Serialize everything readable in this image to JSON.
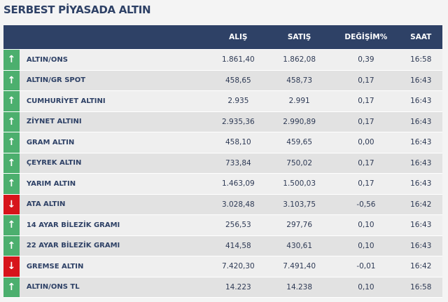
{
  "title": "SERBEST PİYASADA ALTIN",
  "colors": {
    "header": "#2e4166",
    "up": "#4caf6e",
    "down": "#d7141b"
  },
  "columns": {
    "buy": "ALIŞ",
    "sell": "SATIŞ",
    "change": "DEĞİŞİM%",
    "time": "SAAT"
  },
  "rows": [
    {
      "direction": "up",
      "icon": "arrow-up-icon",
      "name": "ALTIN/ONS",
      "buy": "1.861,40",
      "sell": "1.862,08",
      "change": "0,39",
      "time": "16:58"
    },
    {
      "direction": "up",
      "icon": "arrow-up-icon",
      "name": "ALTIN/GR SPOT",
      "buy": "458,65",
      "sell": "458,73",
      "change": "0,17",
      "time": "16:43"
    },
    {
      "direction": "up",
      "icon": "arrow-up-icon",
      "name": "CUMHURİYET ALTINI",
      "buy": "2.935",
      "sell": "2.991",
      "change": "0,17",
      "time": "16:43"
    },
    {
      "direction": "up",
      "icon": "arrow-up-icon",
      "name": "ZİYNET ALTINI",
      "buy": "2.935,36",
      "sell": "2.990,89",
      "change": "0,17",
      "time": "16:43"
    },
    {
      "direction": "up",
      "icon": "arrow-up-icon",
      "name": "GRAM ALTIN",
      "buy": "458,10",
      "sell": "459,65",
      "change": "0,00",
      "time": "16:43"
    },
    {
      "direction": "up",
      "icon": "arrow-up-icon",
      "name": "ÇEYREK ALTIN",
      "buy": "733,84",
      "sell": "750,02",
      "change": "0,17",
      "time": "16:43"
    },
    {
      "direction": "up",
      "icon": "arrow-up-icon",
      "name": "YARIM ALTIN",
      "buy": "1.463,09",
      "sell": "1.500,03",
      "change": "0,17",
      "time": "16:43"
    },
    {
      "direction": "down",
      "icon": "arrow-down-icon",
      "name": "ATA ALTIN",
      "buy": "3.028,48",
      "sell": "3.103,75",
      "change": "-0,56",
      "time": "16:42"
    },
    {
      "direction": "up",
      "icon": "arrow-up-icon",
      "name": "14 AYAR BİLEZİK GRAMI",
      "buy": "256,53",
      "sell": "297,76",
      "change": "0,10",
      "time": "16:43"
    },
    {
      "direction": "up",
      "icon": "arrow-up-icon",
      "name": "22 AYAR BİLEZİK GRAMI",
      "buy": "414,58",
      "sell": "430,61",
      "change": "0,10",
      "time": "16:43"
    },
    {
      "direction": "down",
      "icon": "arrow-down-icon",
      "name": "GREMSE ALTIN",
      "buy": "7.420,30",
      "sell": "7.491,40",
      "change": "-0,01",
      "time": "16:42"
    },
    {
      "direction": "up",
      "icon": "arrow-up-icon",
      "name": "ALTIN/ONS TL",
      "buy": "14.223",
      "sell": "14.238",
      "change": "0,10",
      "time": "16:58"
    }
  ]
}
